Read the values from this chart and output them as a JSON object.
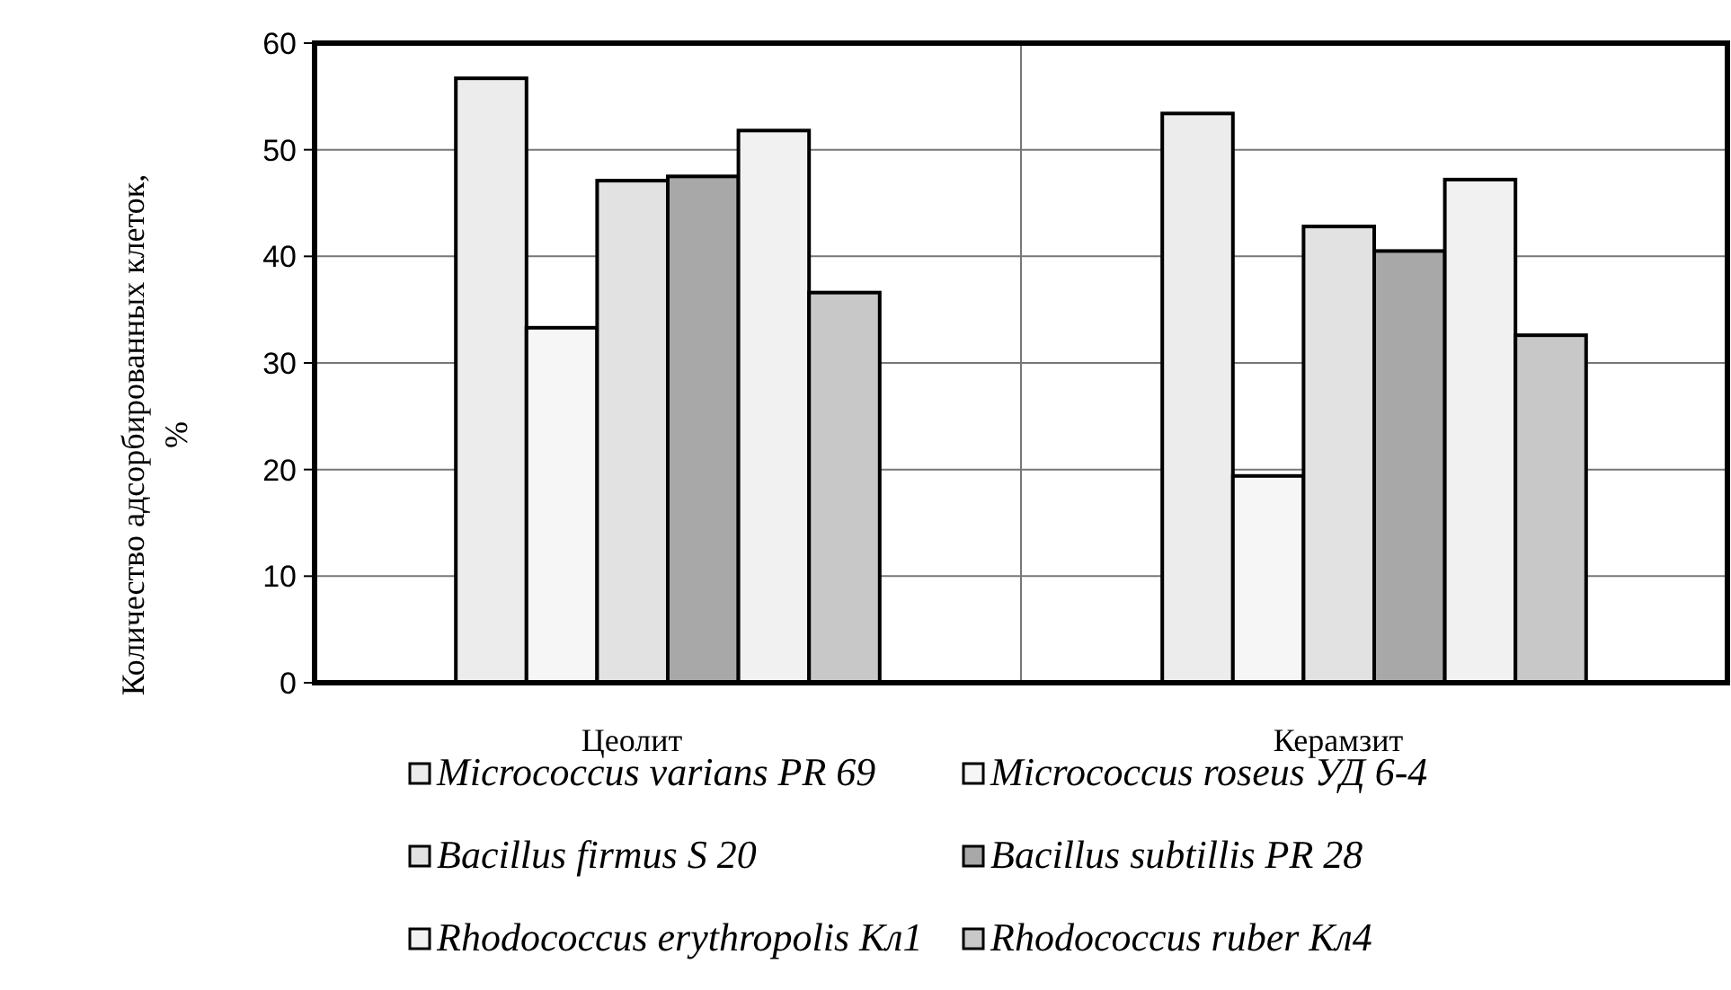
{
  "chart_data": {
    "type": "bar",
    "ylabel": "Количество адсорбированных клеток, %",
    "categories": [
      "Цеолит",
      "Керамзит"
    ],
    "series": [
      {
        "name": "Micrococcus varians PR 69",
        "color": "#ececec",
        "values": [
          56.7,
          53.4
        ]
      },
      {
        "name": "Micrococcus roseus УД 6-4",
        "color": "#f6f6f6",
        "values": [
          33.3,
          19.4
        ]
      },
      {
        "name": "Bacillus firmus S 20",
        "color": "#e2e2e2",
        "values": [
          47.1,
          42.8
        ]
      },
      {
        "name": "Bacillus subtillis PR 28",
        "color": "#a8a8a8",
        "values": [
          47.5,
          40.5
        ]
      },
      {
        "name": "Rhodococcus erythropolis Кл1",
        "color": "#f1f1f1",
        "values": [
          51.8,
          47.2
        ]
      },
      {
        "name": "Rhodococcus ruber Кл4",
        "color": "#c8c8c8",
        "values": [
          36.6,
          32.6
        ]
      }
    ],
    "ylim": [
      0,
      60
    ],
    "yticks": [
      0,
      10,
      20,
      30,
      40,
      50,
      60
    ],
    "grid": true,
    "legend": "bottom"
  }
}
